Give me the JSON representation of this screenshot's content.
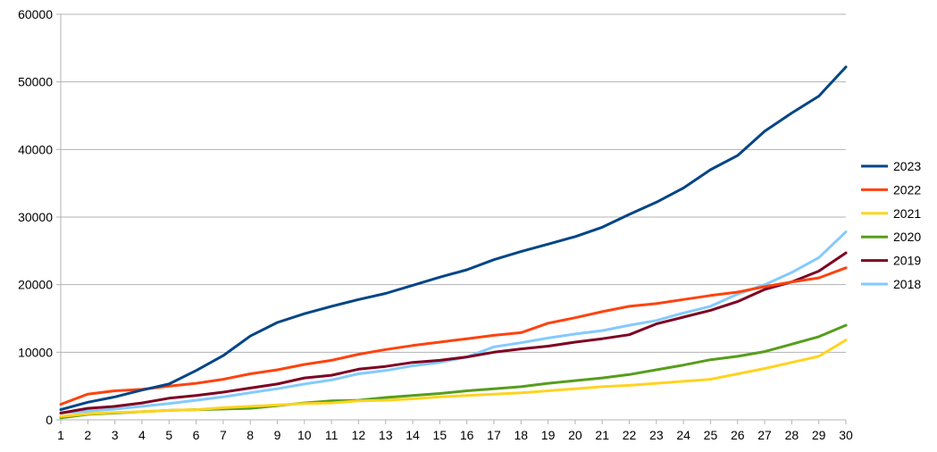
{
  "chart_data": {
    "type": "line",
    "title": "",
    "xlabel": "",
    "ylabel": "",
    "x": [
      1,
      2,
      3,
      4,
      5,
      6,
      7,
      8,
      9,
      10,
      11,
      12,
      13,
      14,
      15,
      16,
      17,
      18,
      19,
      20,
      21,
      22,
      23,
      24,
      25,
      26,
      27,
      28,
      29,
      30
    ],
    "ylim": [
      0,
      60000
    ],
    "yticks": [
      0,
      10000,
      20000,
      30000,
      40000,
      50000,
      60000
    ],
    "grid": true,
    "legend_position": "right",
    "series": [
      {
        "name": "2023",
        "color": "#004586",
        "values": [
          1500,
          2600,
          3400,
          4400,
          5300,
          7300,
          9500,
          12400,
          14400,
          15700,
          16800,
          17800,
          18700,
          19900,
          21100,
          22200,
          23700,
          24900,
          26000,
          27100,
          28500,
          30400,
          32200,
          34300,
          37000,
          39100,
          42700,
          45400,
          47900,
          52200
        ]
      },
      {
        "name": "2022",
        "color": "#ff420e",
        "values": [
          2300,
          3800,
          4300,
          4500,
          5000,
          5400,
          6000,
          6800,
          7400,
          8200,
          8800,
          9700,
          10400,
          11000,
          11500,
          12000,
          12500,
          12900,
          14300,
          15100,
          16000,
          16800,
          17200,
          17800,
          18400,
          18900,
          19700,
          20400,
          21000,
          22500
        ]
      },
      {
        "name": "2021",
        "color": "#ffd320",
        "values": [
          500,
          900,
          1100,
          1200,
          1400,
          1500,
          1800,
          2000,
          2200,
          2400,
          2500,
          2800,
          2900,
          3100,
          3400,
          3600,
          3800,
          4000,
          4300,
          4600,
          4900,
          5100,
          5400,
          5700,
          6000,
          6800,
          7600,
          8500,
          9400,
          11800
        ]
      },
      {
        "name": "2020",
        "color": "#579d1c",
        "values": [
          300,
          800,
          1000,
          1200,
          1400,
          1500,
          1600,
          1700,
          2100,
          2500,
          2800,
          2900,
          3300,
          3600,
          3900,
          4300,
          4600,
          4900,
          5400,
          5800,
          6200,
          6700,
          7400,
          8100,
          8900,
          9400,
          10100,
          11200,
          12300,
          14000
        ]
      },
      {
        "name": "2019",
        "color": "#7e0021",
        "values": [
          1000,
          1700,
          2000,
          2500,
          3200,
          3600,
          4100,
          4700,
          5300,
          6200,
          6600,
          7500,
          7900,
          8500,
          8800,
          9300,
          10000,
          10500,
          10900,
          11500,
          12000,
          12600,
          14200,
          15200,
          16200,
          17500,
          19300,
          20400,
          22000,
          24700
        ]
      },
      {
        "name": "2018",
        "color": "#83caff",
        "values": [
          1000,
          1300,
          1600,
          2000,
          2400,
          2900,
          3400,
          4000,
          4600,
          5300,
          5900,
          6800,
          7300,
          8000,
          8500,
          9300,
          10800,
          11400,
          12100,
          12700,
          13200,
          14000,
          14700,
          15800,
          16800,
          18600,
          20000,
          21800,
          24000,
          27800
        ]
      }
    ]
  }
}
